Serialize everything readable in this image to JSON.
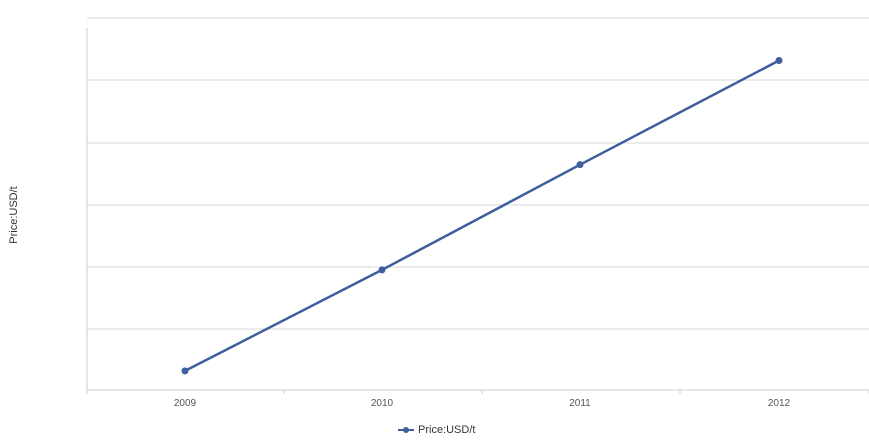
{
  "chart_data": {
    "type": "line",
    "title": "",
    "xlabel": "",
    "ylabel": "Price:USD/t",
    "categories": [
      "2009",
      "2010",
      "2011",
      "2012"
    ],
    "series": [
      {
        "name": "Price:USD/t",
        "values": [
          53,
          148,
          247,
          345
        ]
      }
    ],
    "ylim": [
      35,
      385
    ],
    "grid": true,
    "legend_position": "bottom-center",
    "colors": {
      "series": "#3e5f9b",
      "grid": "#d9d9d9",
      "axis": "#cccccc"
    }
  }
}
